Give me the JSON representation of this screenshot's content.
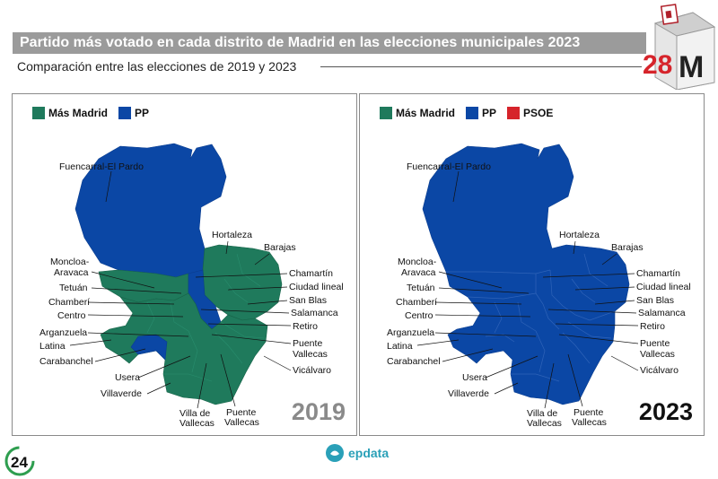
{
  "title": "Partido más votado en cada distrito de Madrid en las elecciones municipales 2023",
  "subtitle": "Comparación entre las elecciones de 2019 y 2023",
  "logo": {
    "number": "28",
    "letter": "M"
  },
  "colors": {
    "mas_madrid": "#1f7a5c",
    "pp": "#0b47a5",
    "psoe": "#d6242b"
  },
  "panels": [
    {
      "year": "2019",
      "legend": [
        {
          "label": "Más Madrid",
          "color": "#1f7a5c"
        },
        {
          "label": "PP",
          "color": "#0b47a5"
        }
      ]
    },
    {
      "year": "2023",
      "legend": [
        {
          "label": "Más Madrid",
          "color": "#1f7a5c"
        },
        {
          "label": "PP",
          "color": "#0b47a5"
        },
        {
          "label": "PSOE",
          "color": "#d6242b"
        }
      ]
    }
  ],
  "district_labels": {
    "fuencarral": "Fuencarral-El Pardo",
    "hortaleza": "Hortaleza",
    "barajas": "Barajas",
    "moncloa_1": "Moncloa-",
    "moncloa_2": "Aravaca",
    "chamartin": "Chamartín",
    "tetuan": "Tetuán",
    "ciudad_lineal": "Ciudad lineal",
    "chamberi": "Chamberí",
    "san_blas": "San Blas",
    "centro": "Centro",
    "salamanca": "Salamanca",
    "retiro": "Retiro",
    "arganzuela": "Arganzuela",
    "latina": "Latina",
    "puente_vallecas_1": "Puente",
    "puente_vallecas_2": "Vallecas",
    "carabanchel": "Carabanchel",
    "vicalvaro": "Vicálvaro",
    "usera": "Usera",
    "villaverde": "Villaverde",
    "villa_vallecas_1": "Villa de",
    "villa_vallecas_2": "Vallecas",
    "puente_vallecas_s1": "Puente",
    "puente_vallecas_s2": "Vallecas"
  },
  "footer": {
    "badge": "24",
    "source": "epdata"
  }
}
